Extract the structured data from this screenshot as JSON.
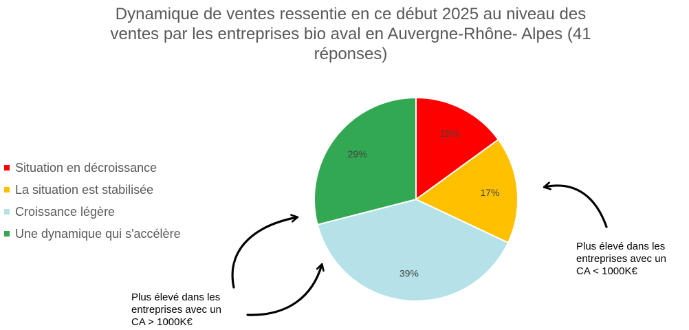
{
  "chart_data": {
    "type": "pie",
    "title": "Dynamique de ventes ressentie en ce début 2025 au niveau des ventes par les entreprises bio aval en Auvergne-Rhône- Alpes (41 réponses)",
    "title_lines": [
      "Dynamique de ventes ressentie en ce début 2025 au niveau des",
      "ventes par les entreprises bio aval en Auvergne-Rhône- Alpes (41",
      "réponses)"
    ],
    "categories": [
      "Situation en décroissance",
      "La situation est stabilisée",
      "Croissance légère",
      "Une dynamique qui s'accélère"
    ],
    "values": [
      15,
      17,
      39,
      29
    ],
    "labels": [
      "15%",
      "17%",
      "39%",
      "29%"
    ],
    "colors": [
      "#ff0000",
      "#ffc000",
      "#b4e2e8",
      "#33a852"
    ],
    "legend_position": "left",
    "annotations": [
      {
        "id": "left",
        "lines": [
          "Plus élevé dans les",
          "entreprises avec un",
          "CA > 1000K€"
        ]
      },
      {
        "id": "right",
        "lines": [
          "Plus élevé dans les",
          "entreprises avec un",
          "CA < 1000K€"
        ]
      }
    ]
  }
}
